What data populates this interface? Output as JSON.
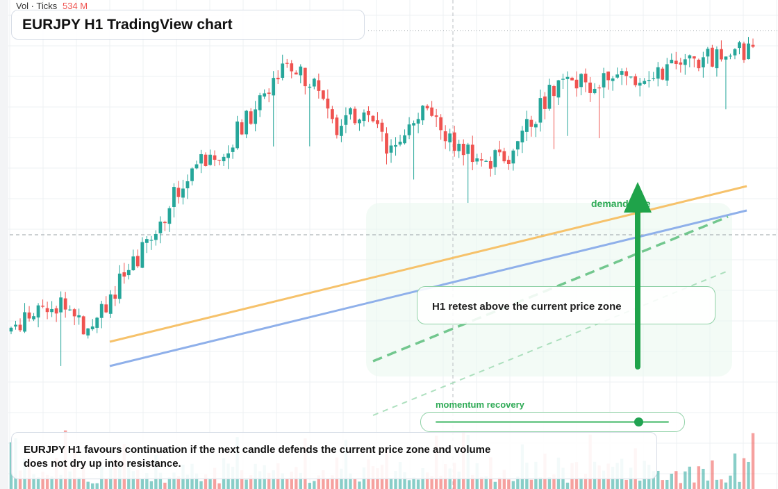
{
  "header": {
    "volume_label": "Vol · Ticks",
    "volume_value": "534 M",
    "title": "EURJPY H1 TradingView chart"
  },
  "annotations": {
    "zone_note": "H1 retest above the current price zone",
    "arrow_label": "demand side",
    "momentum_label": "momentum recovery",
    "momentum_level": 0.87
  },
  "caption": "EURJPY H1 favours continuation if the next candle defends the current price zone and volume does not dry up into resistance.",
  "colors": {
    "up": "#26a69a",
    "down": "#ef5350",
    "trend_orange": "#f6c26b",
    "trend_blue": "#8fb0ea",
    "accent_green": "#1fa34a"
  },
  "chart_data": {
    "type": "candlestick",
    "symbol": "EURJPY",
    "timeframe": "H1",
    "candle_count": 165,
    "price_range_relative": [
      0,
      1
    ],
    "volume_label": "Vol · Ticks",
    "trend": "rally from lows, consolidation near highs, breakout attempt at the right edge",
    "gridlines": true
  }
}
